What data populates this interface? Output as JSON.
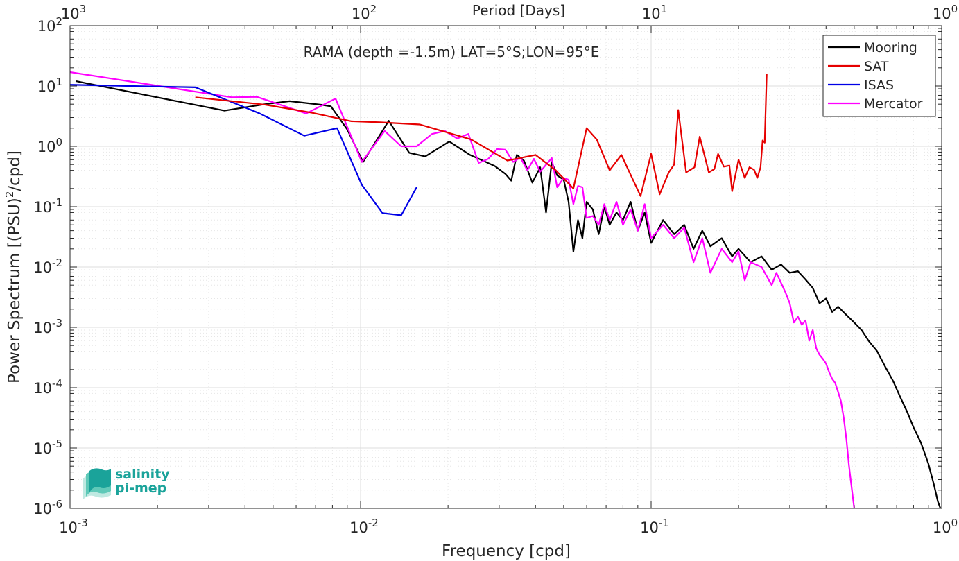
{
  "chart_data": {
    "type": "line",
    "title": "RAMA (depth =-1.5m) LAT=5°S;LON=95°E",
    "xlabel": "Frequency [cpd]",
    "ylabel_main": "Power Spectrum [(PSU)",
    "ylabel_sup": "2",
    "ylabel_tail": "/cpd]",
    "top_xlabel": "Period [Days]",
    "xscale": "log",
    "yscale": "log",
    "xlim": [
      0.001,
      1
    ],
    "ylim": [
      1e-06,
      100
    ],
    "grid": true,
    "legend_position": "top-right",
    "x_ticks": [
      {
        "value": 0.001,
        "base": "10",
        "exp": "-3"
      },
      {
        "value": 0.01,
        "base": "10",
        "exp": "-2"
      },
      {
        "value": 0.1,
        "base": "10",
        "exp": "-1"
      },
      {
        "value": 1,
        "base": "10",
        "exp": "0"
      }
    ],
    "y_ticks": [
      {
        "value": 1e-06,
        "base": "10",
        "exp": "-6"
      },
      {
        "value": 1e-05,
        "base": "10",
        "exp": "-5"
      },
      {
        "value": 0.0001,
        "base": "10",
        "exp": "-4"
      },
      {
        "value": 0.001,
        "base": "10",
        "exp": "-3"
      },
      {
        "value": 0.01,
        "base": "10",
        "exp": "-2"
      },
      {
        "value": 0.1,
        "base": "10",
        "exp": "-1"
      },
      {
        "value": 1,
        "base": "10",
        "exp": "0"
      },
      {
        "value": 10,
        "base": "10",
        "exp": "1"
      },
      {
        "value": 100,
        "base": "10",
        "exp": "2"
      }
    ],
    "top_ticks": [
      {
        "value": 0.001,
        "base": "10",
        "exp": "3"
      },
      {
        "value": 0.01,
        "base": "10",
        "exp": "2"
      },
      {
        "value": 0.1,
        "base": "10",
        "exp": "1"
      },
      {
        "value": 1,
        "base": "10",
        "exp": "0"
      }
    ],
    "series": [
      {
        "name": "Mooring",
        "color": "#000000",
        "points": [
          [
            0.00105,
            12
          ],
          [
            0.0034,
            3.9
          ],
          [
            0.0047,
            5.0
          ],
          [
            0.0057,
            5.6
          ],
          [
            0.0073,
            4.9
          ],
          [
            0.0079,
            4.6
          ],
          [
            0.009,
            1.9
          ],
          [
            0.0102,
            0.55
          ],
          [
            0.0125,
            2.65
          ],
          [
            0.0147,
            0.78
          ],
          [
            0.0167,
            0.68
          ],
          [
            0.0202,
            1.2
          ],
          [
            0.0238,
            0.72
          ],
          [
            0.027,
            0.55
          ],
          [
            0.029,
            0.47
          ],
          [
            0.0315,
            0.35
          ],
          [
            0.033,
            0.27
          ],
          [
            0.0345,
            0.72
          ],
          [
            0.0365,
            0.58
          ],
          [
            0.039,
            0.25
          ],
          [
            0.0415,
            0.45
          ],
          [
            0.0435,
            0.08
          ],
          [
            0.0455,
            0.55
          ],
          [
            0.0475,
            0.33
          ],
          [
            0.05,
            0.28
          ],
          [
            0.052,
            0.12
          ],
          [
            0.054,
            0.018
          ],
          [
            0.056,
            0.06
          ],
          [
            0.058,
            0.03
          ],
          [
            0.06,
            0.12
          ],
          [
            0.063,
            0.09
          ],
          [
            0.066,
            0.035
          ],
          [
            0.069,
            0.1
          ],
          [
            0.072,
            0.05
          ],
          [
            0.076,
            0.08
          ],
          [
            0.08,
            0.06
          ],
          [
            0.085,
            0.12
          ],
          [
            0.09,
            0.04
          ],
          [
            0.095,
            0.08
          ],
          [
            0.1,
            0.025
          ],
          [
            0.11,
            0.06
          ],
          [
            0.12,
            0.035
          ],
          [
            0.13,
            0.05
          ],
          [
            0.14,
            0.02
          ],
          [
            0.15,
            0.04
          ],
          [
            0.16,
            0.022
          ],
          [
            0.175,
            0.03
          ],
          [
            0.19,
            0.015
          ],
          [
            0.2,
            0.02
          ],
          [
            0.22,
            0.012
          ],
          [
            0.24,
            0.015
          ],
          [
            0.26,
            0.009
          ],
          [
            0.28,
            0.011
          ],
          [
            0.3,
            0.008
          ],
          [
            0.32,
            0.0085
          ],
          [
            0.34,
            0.0062
          ],
          [
            0.36,
            0.0045
          ],
          [
            0.38,
            0.0025
          ],
          [
            0.4,
            0.003
          ],
          [
            0.42,
            0.0018
          ],
          [
            0.44,
            0.0022
          ],
          [
            0.47,
            0.0016
          ],
          [
            0.5,
            0.0012
          ],
          [
            0.53,
            0.0009
          ],
          [
            0.56,
            0.0006
          ],
          [
            0.6,
            0.0004
          ],
          [
            0.64,
            0.00022
          ],
          [
            0.68,
            0.00013
          ],
          [
            0.72,
            7e-05
          ],
          [
            0.76,
            4e-05
          ],
          [
            0.8,
            2.2e-05
          ],
          [
            0.85,
            1.2e-05
          ],
          [
            0.9,
            5.5e-06
          ],
          [
            0.94,
            2.5e-06
          ],
          [
            0.97,
            1.3e-06
          ],
          [
            0.99,
            1e-06
          ]
        ]
      },
      {
        "name": "SAT",
        "color": "#e60000",
        "points": [
          [
            0.0027,
            6.5
          ],
          [
            0.0047,
            4.9
          ],
          [
            0.0068,
            3.6
          ],
          [
            0.0093,
            2.6
          ],
          [
            0.0117,
            2.5
          ],
          [
            0.016,
            2.3
          ],
          [
            0.024,
            1.3
          ],
          [
            0.032,
            0.58
          ],
          [
            0.04,
            0.72
          ],
          [
            0.047,
            0.4
          ],
          [
            0.054,
            0.2
          ],
          [
            0.06,
            2.0
          ],
          [
            0.065,
            1.3
          ],
          [
            0.072,
            0.4
          ],
          [
            0.079,
            0.72
          ],
          [
            0.092,
            0.15
          ],
          [
            0.1,
            0.75
          ],
          [
            0.107,
            0.16
          ],
          [
            0.115,
            0.37
          ],
          [
            0.12,
            0.5
          ],
          [
            0.124,
            4.0
          ],
          [
            0.132,
            0.37
          ],
          [
            0.141,
            0.45
          ],
          [
            0.147,
            1.45
          ],
          [
            0.158,
            0.37
          ],
          [
            0.165,
            0.42
          ],
          [
            0.17,
            0.75
          ],
          [
            0.178,
            0.46
          ],
          [
            0.186,
            0.48
          ],
          [
            0.19,
            0.18
          ],
          [
            0.2,
            0.6
          ],
          [
            0.21,
            0.3
          ],
          [
            0.218,
            0.45
          ],
          [
            0.226,
            0.41
          ],
          [
            0.232,
            0.3
          ],
          [
            0.238,
            0.45
          ],
          [
            0.242,
            1.25
          ],
          [
            0.246,
            1.15
          ],
          [
            0.25,
            16
          ]
        ]
      },
      {
        "name": "ISAS",
        "color": "#0000e6",
        "points": [
          [
            0.001,
            10.5
          ],
          [
            0.0027,
            9.5
          ],
          [
            0.0045,
            3.5
          ],
          [
            0.0064,
            1.5
          ],
          [
            0.0083,
            2.0
          ],
          [
            0.0101,
            0.23
          ],
          [
            0.0119,
            0.078
          ],
          [
            0.0138,
            0.072
          ],
          [
            0.0156,
            0.21
          ]
        ]
      },
      {
        "name": "Mercator",
        "color": "#ff00ff",
        "points": [
          [
            0.001,
            17
          ],
          [
            0.0036,
            6.5
          ],
          [
            0.0044,
            6.6
          ],
          [
            0.0065,
            3.5
          ],
          [
            0.0082,
            6.2
          ],
          [
            0.0101,
            0.55
          ],
          [
            0.0121,
            1.8
          ],
          [
            0.0138,
            1.0
          ],
          [
            0.0156,
            1.0
          ],
          [
            0.0176,
            1.6
          ],
          [
            0.0195,
            1.8
          ],
          [
            0.0215,
            1.35
          ],
          [
            0.0235,
            1.6
          ],
          [
            0.0255,
            0.53
          ],
          [
            0.0275,
            0.62
          ],
          [
            0.0295,
            0.9
          ],
          [
            0.0315,
            0.88
          ],
          [
            0.0335,
            0.55
          ],
          [
            0.0355,
            0.65
          ],
          [
            0.0375,
            0.4
          ],
          [
            0.0395,
            0.62
          ],
          [
            0.0415,
            0.38
          ],
          [
            0.0455,
            0.64
          ],
          [
            0.0475,
            0.21
          ],
          [
            0.05,
            0.3
          ],
          [
            0.052,
            0.28
          ],
          [
            0.054,
            0.11
          ],
          [
            0.056,
            0.22
          ],
          [
            0.058,
            0.21
          ],
          [
            0.06,
            0.065
          ],
          [
            0.063,
            0.07
          ],
          [
            0.066,
            0.05
          ],
          [
            0.069,
            0.11
          ],
          [
            0.072,
            0.06
          ],
          [
            0.076,
            0.12
          ],
          [
            0.08,
            0.05
          ],
          [
            0.085,
            0.09
          ],
          [
            0.09,
            0.04
          ],
          [
            0.095,
            0.11
          ],
          [
            0.1,
            0.03
          ],
          [
            0.11,
            0.05
          ],
          [
            0.12,
            0.03
          ],
          [
            0.13,
            0.045
          ],
          [
            0.14,
            0.012
          ],
          [
            0.15,
            0.03
          ],
          [
            0.16,
            0.008
          ],
          [
            0.175,
            0.02
          ],
          [
            0.19,
            0.012
          ],
          [
            0.2,
            0.018
          ],
          [
            0.21,
            0.006
          ],
          [
            0.22,
            0.012
          ],
          [
            0.24,
            0.01
          ],
          [
            0.26,
            0.005
          ],
          [
            0.27,
            0.008
          ],
          [
            0.29,
            0.0038
          ],
          [
            0.3,
            0.0025
          ],
          [
            0.31,
            0.0012
          ],
          [
            0.32,
            0.0015
          ],
          [
            0.33,
            0.0011
          ],
          [
            0.34,
            0.0013
          ],
          [
            0.35,
            0.0006
          ],
          [
            0.36,
            0.0009
          ],
          [
            0.37,
            0.00045
          ],
          [
            0.38,
            0.00035
          ],
          [
            0.39,
            0.0003
          ],
          [
            0.4,
            0.00025
          ],
          [
            0.41,
            0.00018
          ],
          [
            0.42,
            0.00014
          ],
          [
            0.43,
            0.00012
          ],
          [
            0.44,
            8.5e-05
          ],
          [
            0.45,
            6e-05
          ],
          [
            0.46,
            3.2e-05
          ],
          [
            0.47,
            1.4e-05
          ],
          [
            0.48,
            5e-06
          ],
          [
            0.49,
            2.2e-06
          ],
          [
            0.5,
            1e-06
          ]
        ]
      }
    ]
  },
  "logo": {
    "line1": "salinity",
    "line2": "pi-mep"
  }
}
